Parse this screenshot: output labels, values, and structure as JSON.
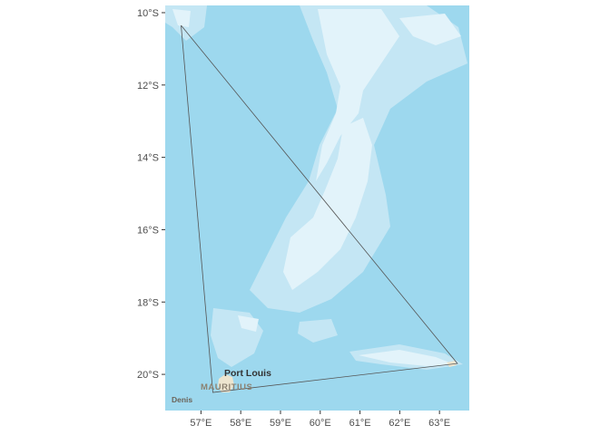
{
  "map": {
    "lat_ticks": [
      {
        "value": -10,
        "label": "10°S"
      },
      {
        "value": -12,
        "label": "12°S"
      },
      {
        "value": -14,
        "label": "14°S"
      },
      {
        "value": -16,
        "label": "16°S"
      },
      {
        "value": -18,
        "label": "18°S"
      },
      {
        "value": -20,
        "label": "20°S"
      }
    ],
    "lon_ticks": [
      {
        "value": 57,
        "label": "57°E"
      },
      {
        "value": 58,
        "label": "58°E"
      },
      {
        "value": 59,
        "label": "59°E"
      },
      {
        "value": 60,
        "label": "60°E"
      },
      {
        "value": 61,
        "label": "61°E"
      },
      {
        "value": 62,
        "label": "62°E"
      },
      {
        "value": 63,
        "label": "63°E"
      }
    ],
    "lon_range": [
      56.1,
      63.75
    ],
    "lat_range": [
      -21.0,
      -9.8
    ],
    "polygon": [
      {
        "lon": 56.5,
        "lat": -10.35
      },
      {
        "lon": 63.45,
        "lat": -19.7
      },
      {
        "lon": 57.3,
        "lat": -20.5
      },
      {
        "lon": 56.5,
        "lat": -10.35
      }
    ],
    "places": {
      "port_louis": "Port Louis",
      "mauritius": "MAURITIUS",
      "denis": "Denis"
    },
    "colors": {
      "ocean": "#9dd8ee",
      "shallow": "#c4e6f4",
      "shoal": "#e2f3fa",
      "land": "#ede5cf",
      "polygon_stroke": "#555555"
    }
  }
}
